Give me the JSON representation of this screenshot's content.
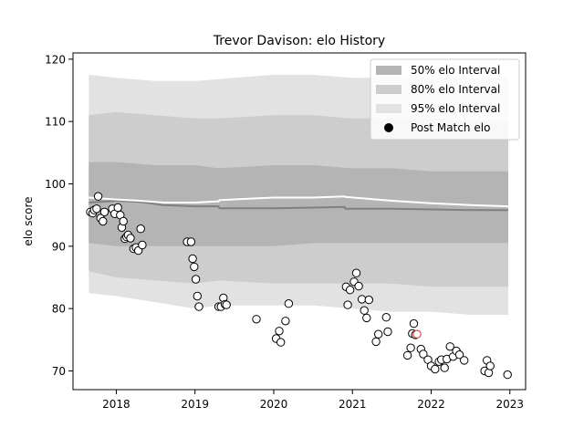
{
  "chart_data": {
    "type": "scatter",
    "title": "Trevor Davison: elo History",
    "xlabel": "",
    "ylabel": "elo score",
    "xlim": [
      2017.45,
      2023.2
    ],
    "ylim": [
      67.0,
      121.0
    ],
    "x_ticks": [
      2018,
      2019,
      2020,
      2021,
      2022,
      2023
    ],
    "y_ticks": [
      70,
      80,
      90,
      100,
      110,
      120
    ],
    "legend_position": "top-right",
    "grid": false,
    "legend": [
      {
        "label": "50% elo Interval",
        "color": "#b0b0b0",
        "kind": "band"
      },
      {
        "label": "80% elo Interval",
        "color": "#c8c8c8",
        "kind": "band"
      },
      {
        "label": "95% elo Interval",
        "color": "#e2e2e2",
        "kind": "band"
      },
      {
        "label": "Post Match elo",
        "color": "#000000",
        "kind": "marker"
      }
    ],
    "bands": {
      "x": [
        2017.65,
        2018.0,
        2018.5,
        2019.0,
        2019.3,
        2020.0,
        2020.5,
        2021.0,
        2021.5,
        2022.0,
        2022.5,
        2022.98
      ],
      "b95_upper": [
        117.5,
        117.0,
        116.5,
        116.5,
        116.8,
        117.5,
        117.5,
        117.0,
        117.0,
        117.0,
        117.0,
        117.0
      ],
      "b95_lower": [
        82.5,
        82.0,
        81.0,
        80.0,
        80.5,
        80.5,
        80.5,
        80.0,
        79.5,
        79.5,
        79.0,
        79.0
      ],
      "b80_upper": [
        111.0,
        111.5,
        111.0,
        110.5,
        110.5,
        111.0,
        111.0,
        110.5,
        110.5,
        110.5,
        110.0,
        110.0
      ],
      "b80_lower": [
        86.0,
        85.0,
        84.5,
        84.0,
        84.5,
        84.0,
        84.0,
        84.0,
        84.0,
        83.5,
        83.5,
        83.5
      ],
      "b50_upper": [
        103.5,
        103.5,
        103.0,
        103.0,
        102.5,
        103.0,
        103.0,
        102.5,
        102.5,
        102.0,
        102.0,
        102.0
      ],
      "b50_lower": [
        90.5,
        90.0,
        90.0,
        90.0,
        90.0,
        90.0,
        90.5,
        90.5,
        90.5,
        90.5,
        90.5,
        90.5
      ]
    },
    "lines": {
      "x": [
        2017.65,
        2018.0,
        2018.3,
        2018.6,
        2019.0,
        2019.3,
        2019.31,
        2020.0,
        2020.5,
        2020.9,
        2020.91,
        2021.5,
        2022.0,
        2022.5,
        2022.98
      ],
      "mean": [
        97.0,
        97.3,
        97.1,
        96.6,
        96.4,
        96.4,
        96.1,
        96.1,
        96.2,
        96.3,
        96.0,
        96.0,
        95.9,
        95.8,
        95.8
      ],
      "upper": [
        97.8,
        97.5,
        97.3,
        97.0,
        97.0,
        97.2,
        97.4,
        97.8,
        97.8,
        98.0,
        97.9,
        97.3,
        96.9,
        96.6,
        96.4
      ]
    },
    "points": {
      "x": [
        2017.67,
        2017.7,
        2017.72,
        2017.75,
        2017.77,
        2017.8,
        2017.83,
        2017.85,
        2017.95,
        2017.98,
        2018.02,
        2018.05,
        2018.07,
        2018.09,
        2018.11,
        2018.13,
        2018.15,
        2018.18,
        2018.22,
        2018.25,
        2018.28,
        2018.31,
        2018.33,
        2018.9,
        2018.95,
        2018.97,
        2018.99,
        2019.01,
        2019.03,
        2019.05,
        2019.3,
        2019.33,
        2019.36,
        2019.38,
        2019.4,
        2019.78,
        2020.03,
        2020.07,
        2020.09,
        2020.15,
        2020.19,
        2020.92,
        2020.94,
        2020.97,
        2021.02,
        2021.05,
        2021.08,
        2021.12,
        2021.15,
        2021.18,
        2021.21,
        2021.3,
        2021.33,
        2021.43,
        2021.45,
        2021.7,
        2021.74,
        2021.76,
        2021.78,
        2021.8,
        2021.87,
        2021.9,
        2021.96,
        2022.0,
        2022.05,
        2022.1,
        2022.13,
        2022.17,
        2022.2,
        2022.24,
        2022.28,
        2022.32,
        2022.36,
        2022.42,
        2022.68,
        2022.71,
        2022.73,
        2022.75,
        2022.97
      ],
      "y": [
        95.5,
        95.3,
        95.8,
        96.0,
        98.0,
        94.5,
        94.0,
        95.5,
        96.0,
        95.2,
        96.2,
        95.0,
        93.0,
        94.0,
        91.2,
        91.5,
        91.8,
        91.3,
        89.6,
        89.8,
        89.3,
        92.8,
        90.2,
        90.7,
        90.7,
        88.0,
        86.7,
        84.7,
        82.0,
        80.3,
        80.3,
        80.3,
        81.7,
        80.7,
        80.6,
        78.3,
        75.2,
        76.4,
        74.6,
        78.0,
        80.8,
        83.5,
        80.6,
        83.0,
        84.3,
        85.7,
        83.6,
        81.5,
        79.7,
        78.5,
        81.4,
        74.7,
        75.9,
        78.6,
        76.3,
        72.5,
        73.7,
        76.0,
        77.6,
        75.8,
        73.5,
        72.7,
        71.8,
        70.8,
        70.3,
        71.5,
        71.8,
        70.5,
        71.9,
        73.9,
        72.3,
        73.2,
        72.6,
        71.7,
        70.0,
        71.7,
        69.7,
        70.8,
        69.4
      ],
      "highlight": [
        {
          "x": 2021.82,
          "y": 75.9,
          "color": "#d62728"
        }
      ]
    },
    "colors": {
      "b95": "#e2e2e2",
      "b80": "#cdcdcd",
      "b50": "#b4b4b4",
      "mean_line": "#808080",
      "upper_line": "#ffffff",
      "marker_edge": "#000000",
      "marker_face": "#ffffff"
    }
  }
}
